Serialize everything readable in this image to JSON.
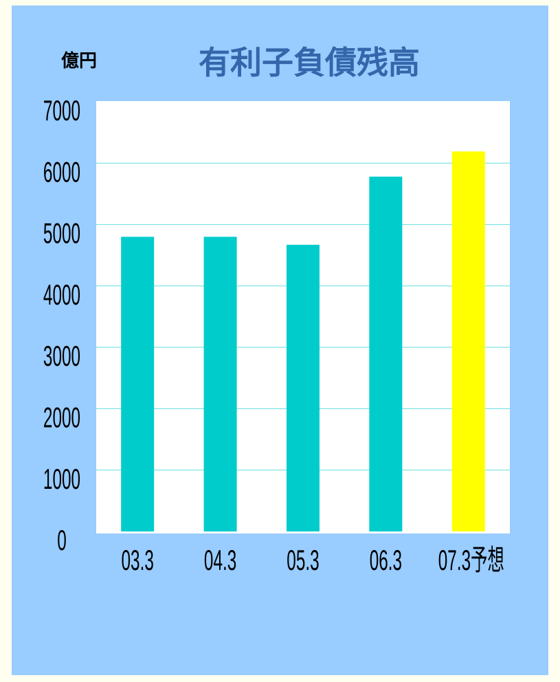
{
  "chart_data": {
    "type": "bar",
    "title": "有利子負債残高",
    "y_label": "億円",
    "categories": [
      "03.3",
      "04.3",
      "05.3",
      "06.3",
      "07.3予想"
    ],
    "values": [
      4800,
      4800,
      4670,
      5780,
      6190
    ],
    "colors": [
      "#00cccc",
      "#00cccc",
      "#00cccc",
      "#00cccc",
      "#ffff00"
    ],
    "ylim": [
      0,
      7000
    ],
    "yticks": [
      0,
      1000,
      2000,
      3000,
      4000,
      5000,
      6000,
      7000
    ],
    "grid": true
  }
}
